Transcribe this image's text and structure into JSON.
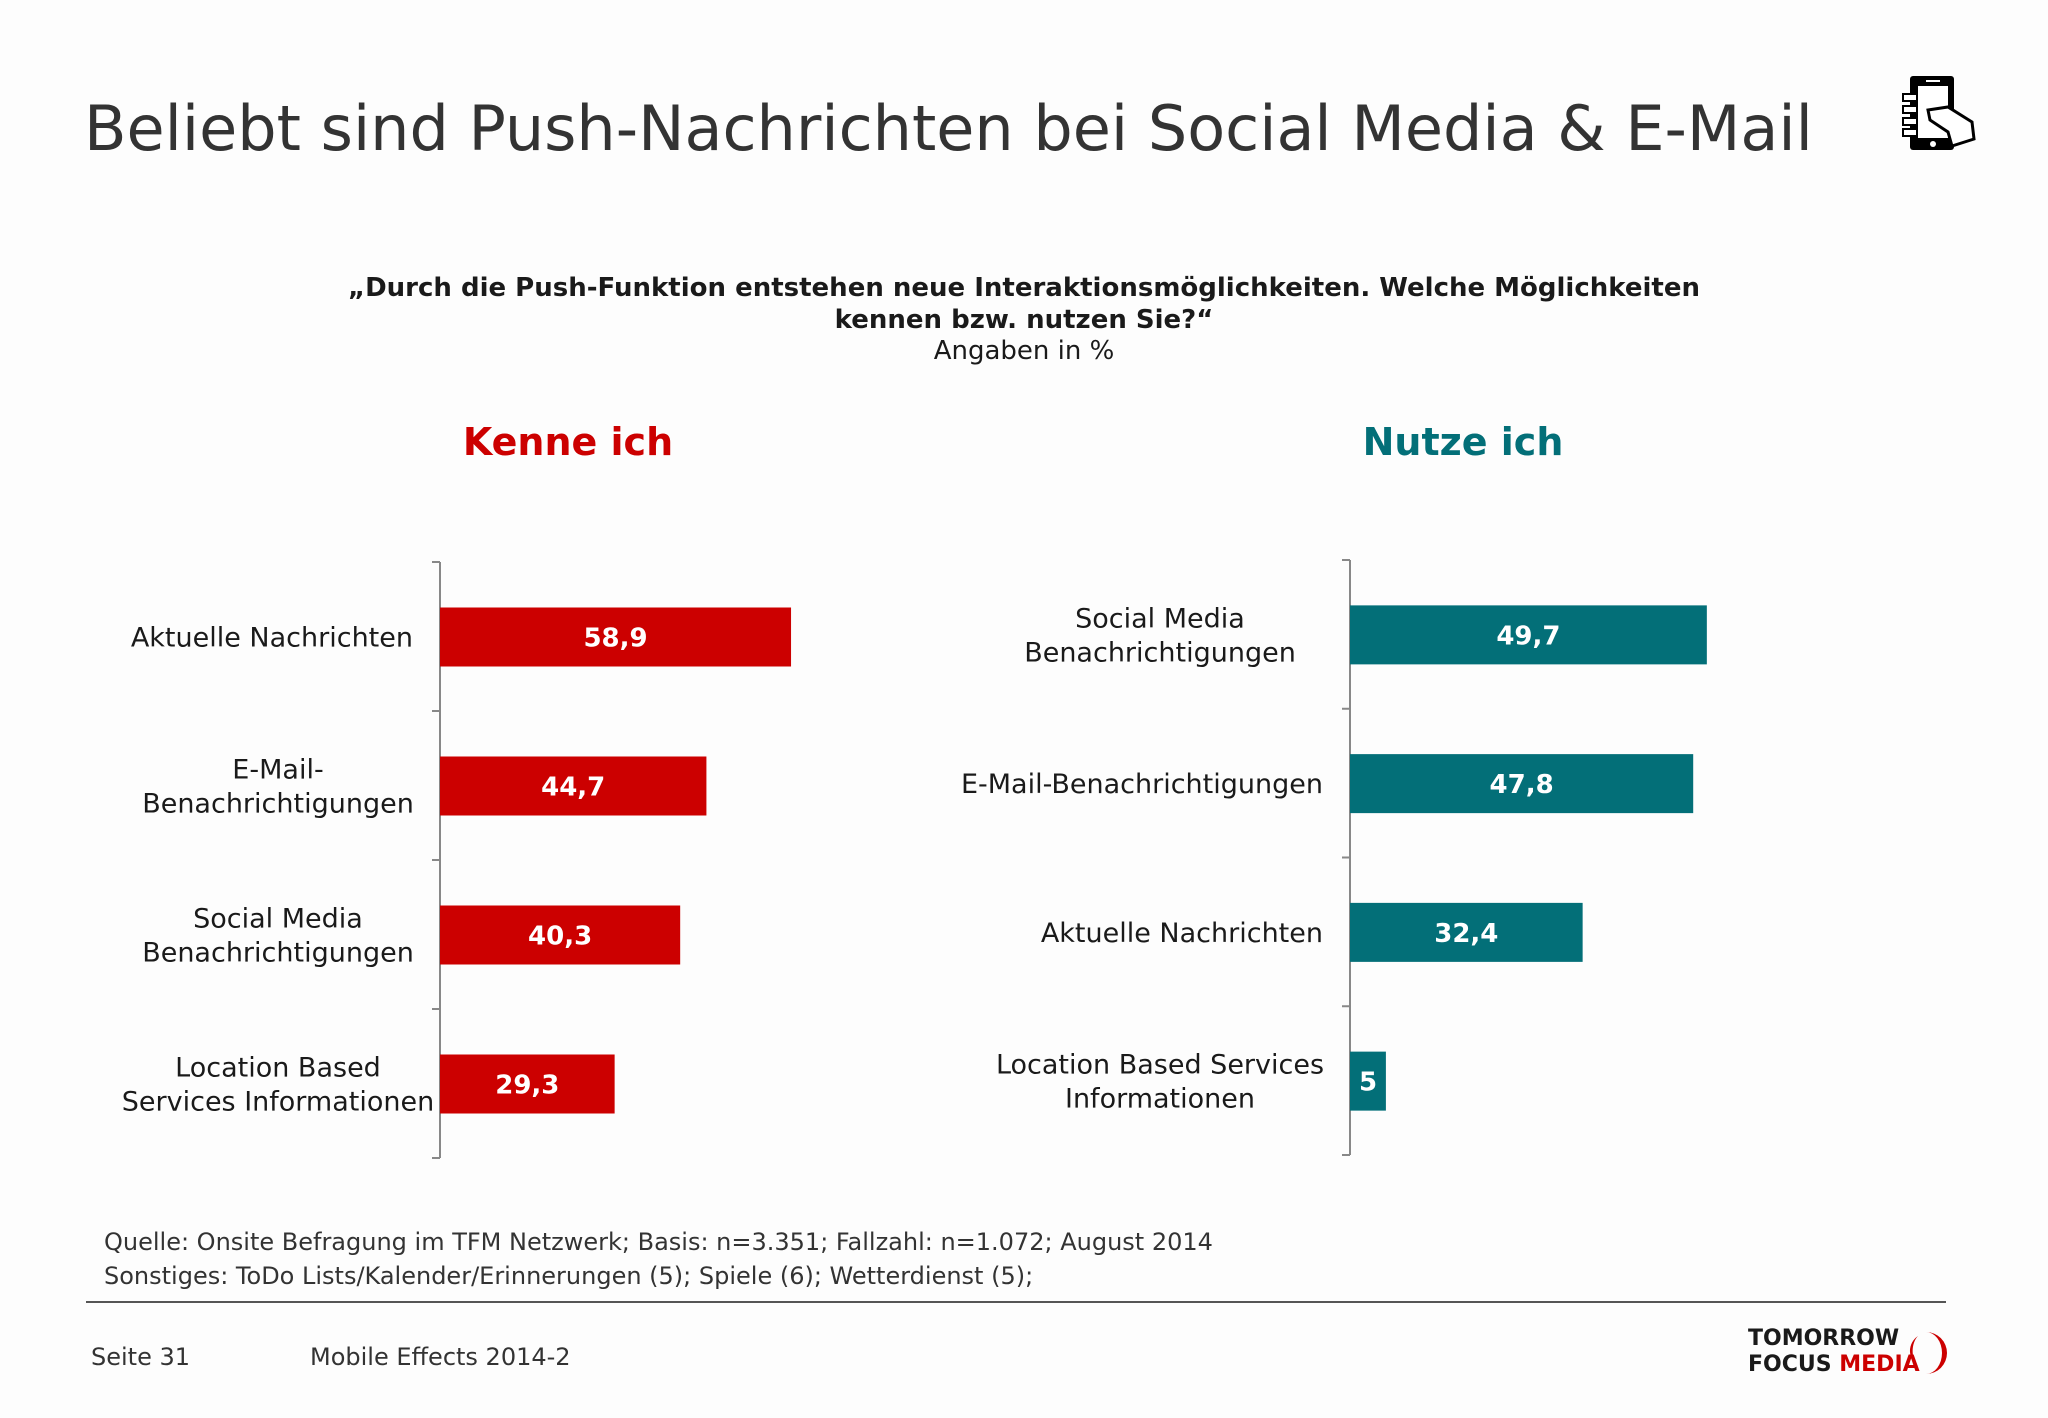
{
  "title": "Beliebt sind Push-Nachrichten bei Social Media & E-Mail",
  "question_line1": "„Durch die Push-Funktion entstehen neue Interaktionsmöglichkeiten. Welche Möglichkeiten",
  "question_line2": "kennen bzw. nutzen Sie?“",
  "unit": "Angaben in %",
  "colors": {
    "kenne": "#cc0000",
    "nutze": "#036f78"
  },
  "chart_data": [
    {
      "type": "bar",
      "orientation": "horizontal",
      "title": "Kenne ich",
      "categories": [
        [
          "Aktuelle Nachrichten"
        ],
        [
          "E-Mail-",
          "Benachrichtigungen"
        ],
        [
          "Social Media",
          "Benachrichtigungen"
        ],
        [
          "Location Based",
          "Services Informationen"
        ]
      ],
      "values": [
        58.9,
        44.7,
        40.3,
        29.3
      ],
      "labels": [
        "58,9",
        "44,7",
        "40,3",
        "29,3"
      ],
      "color": "#cc0000"
    },
    {
      "type": "bar",
      "orientation": "horizontal",
      "title": "Nutze ich",
      "categories": [
        [
          "Social Media",
          "Benachrichtigungen"
        ],
        [
          "E-Mail-Benachrichtigungen"
        ],
        [
          "Aktuelle Nachrichten"
        ],
        [
          "Location Based Services",
          "Informationen"
        ]
      ],
      "values": [
        49.7,
        47.8,
        32.4,
        5
      ],
      "labels": [
        "49,7",
        "47,8",
        "32,4",
        "5"
      ],
      "color": "#036f78"
    }
  ],
  "footer": {
    "source": "Quelle: Onsite Befragung im TFM Netzwerk; Basis: n=3.351; Fallzahl:  n=1.072; August 2014",
    "other": "Sonstiges: ToDo Lists/Kalender/Erinnerungen (5); Spiele (6); Wetterdienst (5);",
    "page": "Seite 31",
    "report": "Mobile Effects 2014-2",
    "logo_line1": "TOMORROW",
    "logo_line2a": "FOCUS",
    "logo_line2b": "MEDIA"
  },
  "icons": {
    "top_right": "smartphone-in-hand-icon"
  }
}
